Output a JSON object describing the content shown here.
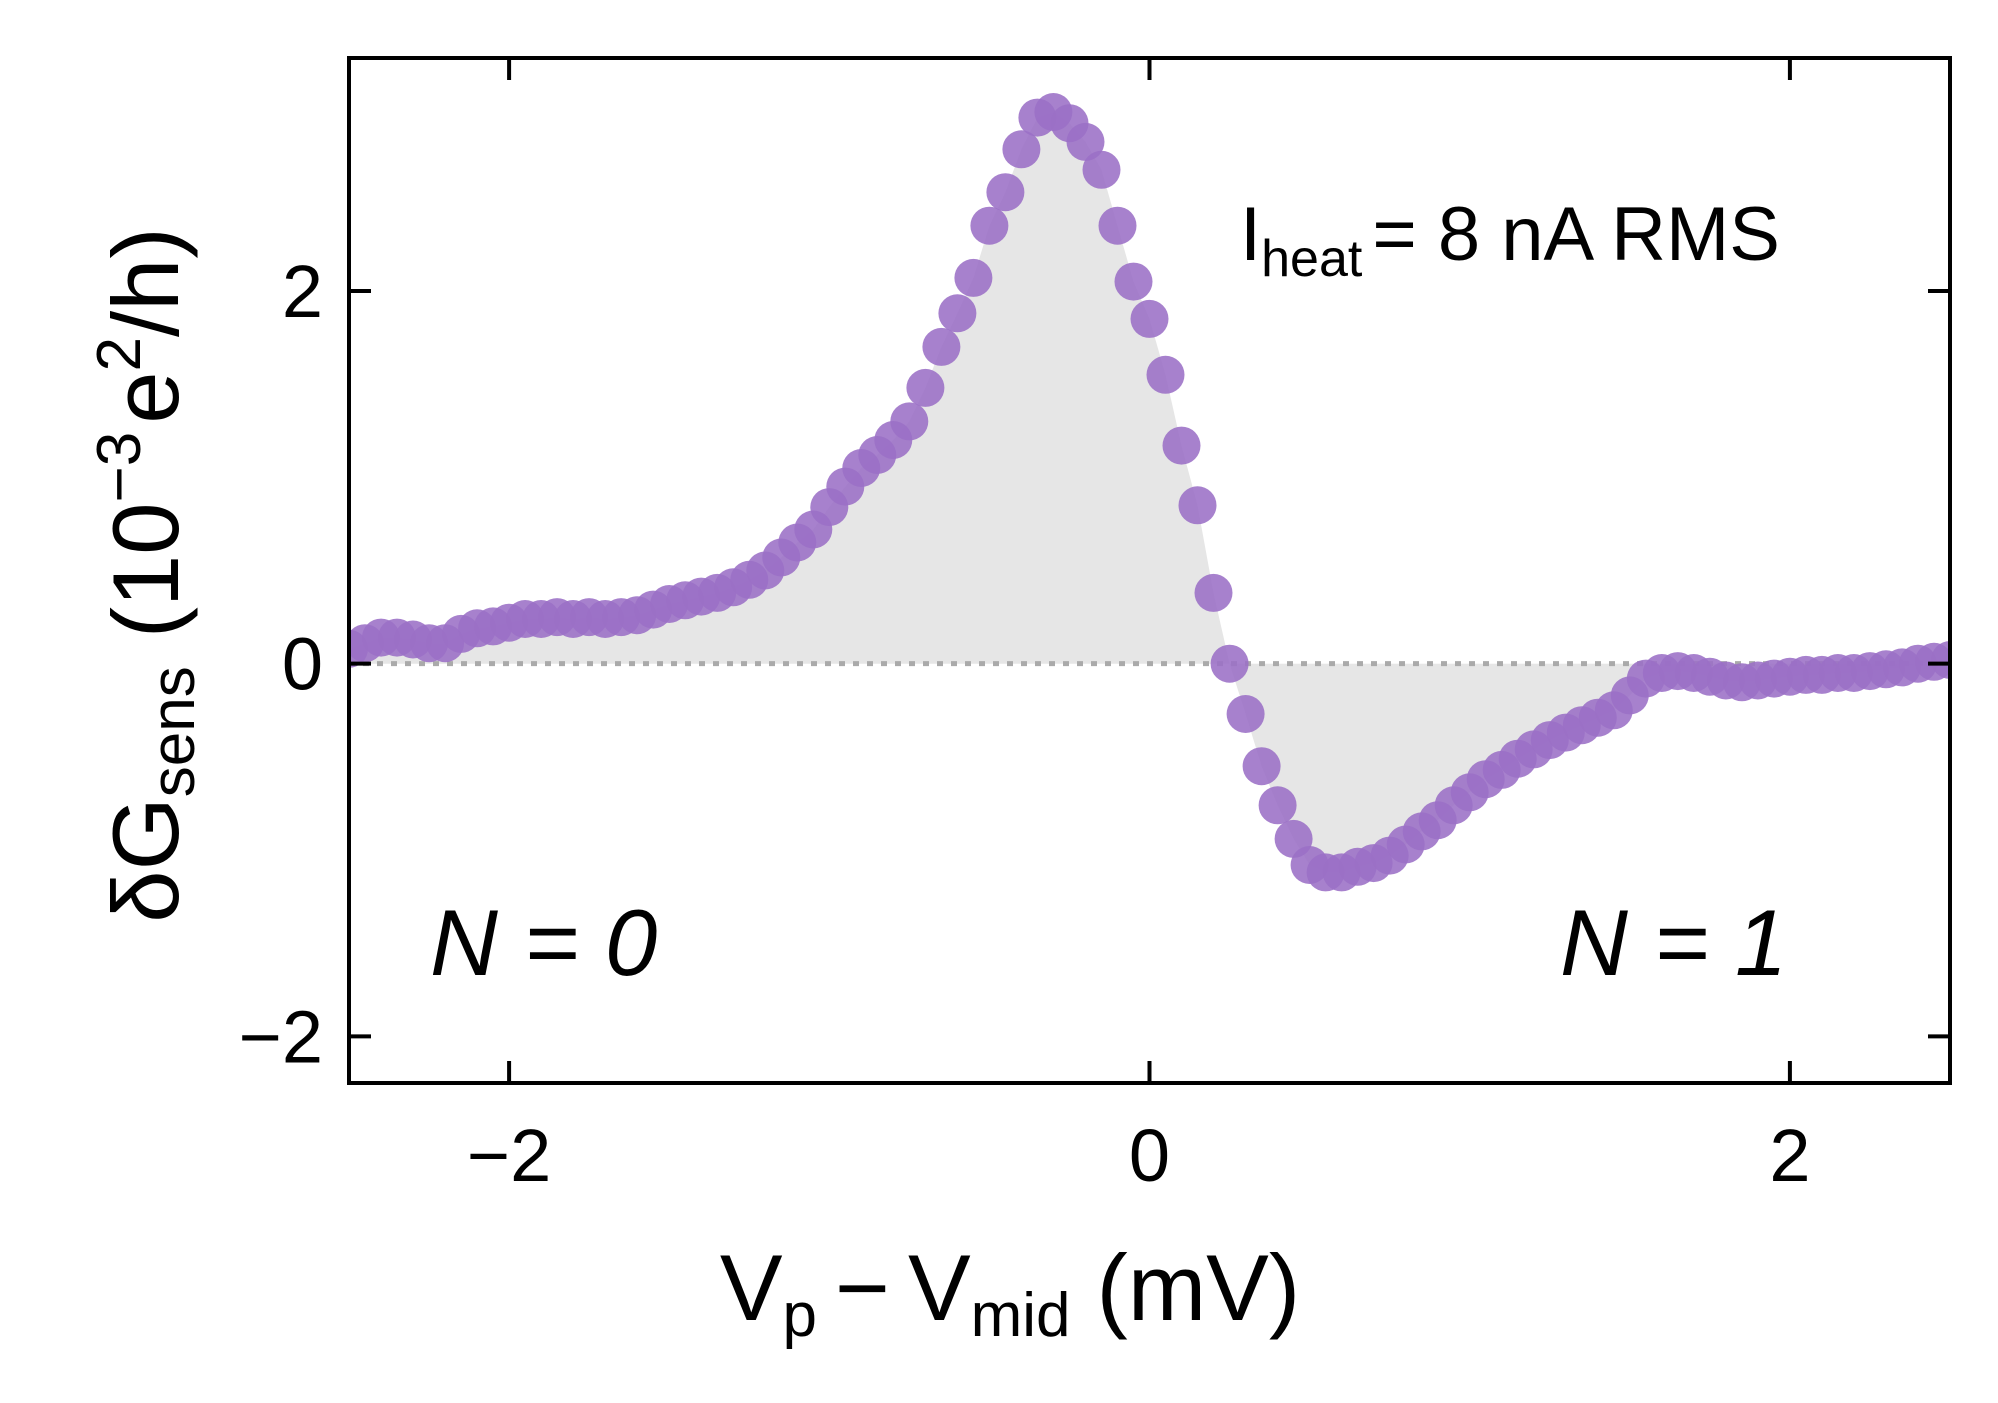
{
  "chart_data": {
    "type": "scatter",
    "xlabel": "Vp − Vmid (mV)",
    "xlabel_parts": {
      "v1": "V",
      "sub1": "p",
      "op": "−",
      "v2": "V",
      "sub2": "mid",
      "unit": "(mV)"
    },
    "ylabel": "δGsens (10−3 e2/h)",
    "ylabel_parts": {
      "sym": "δG",
      "sub": "sens",
      "open": "(10",
      "exp": "−3",
      "e": "e",
      "exp2": "2",
      "tail": "/h)"
    },
    "xlim": [
      -2.5,
      2.5
    ],
    "ylim": [
      -2.25,
      3.25
    ],
    "xticks": [
      -2,
      0,
      2
    ],
    "xtick_labels": [
      "−2",
      "0",
      "2"
    ],
    "yticks": [
      -2,
      0,
      2
    ],
    "ytick_labels": [
      "−2",
      "0",
      "2"
    ],
    "zero_line": "dotted",
    "shaded_area": "between curve and zero",
    "colors": {
      "points": "#9b6fc6",
      "fill": "#e6e6e6",
      "zero_line": "#aaaaaa",
      "axes": "#000000"
    },
    "annotations": {
      "current": {
        "main": "I",
        "sub": "heat",
        "rest": "= 8 nA RMS"
      },
      "left_region": "N = 0",
      "right_region": "N = 1"
    },
    "series": [
      {
        "points": [
          [
            -2.5,
            0.08
          ],
          [
            -2.45,
            0.11
          ],
          [
            -2.4,
            0.14
          ],
          [
            -2.35,
            0.14
          ],
          [
            -2.3,
            0.13
          ],
          [
            -2.25,
            0.11
          ],
          [
            -2.2,
            0.11
          ],
          [
            -2.15,
            0.16
          ],
          [
            -2.1,
            0.19
          ],
          [
            -2.05,
            0.2
          ],
          [
            -2.0,
            0.22
          ],
          [
            -1.95,
            0.24
          ],
          [
            -1.9,
            0.24
          ],
          [
            -1.85,
            0.25
          ],
          [
            -1.8,
            0.24
          ],
          [
            -1.75,
            0.25
          ],
          [
            -1.7,
            0.24
          ],
          [
            -1.65,
            0.25
          ],
          [
            -1.6,
            0.26
          ],
          [
            -1.55,
            0.29
          ],
          [
            -1.5,
            0.32
          ],
          [
            -1.45,
            0.34
          ],
          [
            -1.4,
            0.36
          ],
          [
            -1.35,
            0.38
          ],
          [
            -1.3,
            0.41
          ],
          [
            -1.25,
            0.45
          ],
          [
            -1.2,
            0.5
          ],
          [
            -1.15,
            0.57
          ],
          [
            -1.1,
            0.65
          ],
          [
            -1.05,
            0.72
          ],
          [
            -1.0,
            0.84
          ],
          [
            -0.95,
            0.95
          ],
          [
            -0.9,
            1.05
          ],
          [
            -0.85,
            1.12
          ],
          [
            -0.8,
            1.2
          ],
          [
            -0.75,
            1.3
          ],
          [
            -0.7,
            1.48
          ],
          [
            -0.65,
            1.7
          ],
          [
            -0.6,
            1.88
          ],
          [
            -0.55,
            2.07
          ],
          [
            -0.5,
            2.35
          ],
          [
            -0.45,
            2.53
          ],
          [
            -0.4,
            2.76
          ],
          [
            -0.35,
            2.93
          ],
          [
            -0.3,
            2.96
          ],
          [
            -0.25,
            2.9
          ],
          [
            -0.2,
            2.8
          ],
          [
            -0.15,
            2.65
          ],
          [
            -0.1,
            2.35
          ],
          [
            -0.05,
            2.05
          ],
          [
            0.0,
            1.85
          ],
          [
            0.05,
            1.55
          ],
          [
            0.1,
            1.17
          ],
          [
            0.15,
            0.85
          ],
          [
            0.2,
            0.38
          ],
          [
            0.25,
            0.0
          ],
          [
            0.3,
            -0.27
          ],
          [
            0.35,
            -0.55
          ],
          [
            0.4,
            -0.76
          ],
          [
            0.45,
            -0.94
          ],
          [
            0.5,
            -1.08
          ],
          [
            0.55,
            -1.12
          ],
          [
            0.6,
            -1.12
          ],
          [
            0.65,
            -1.09
          ],
          [
            0.7,
            -1.07
          ],
          [
            0.75,
            -1.03
          ],
          [
            0.8,
            -0.97
          ],
          [
            0.85,
            -0.9
          ],
          [
            0.9,
            -0.84
          ],
          [
            0.95,
            -0.76
          ],
          [
            1.0,
            -0.69
          ],
          [
            1.05,
            -0.62
          ],
          [
            1.1,
            -0.57
          ],
          [
            1.15,
            -0.51
          ],
          [
            1.2,
            -0.46
          ],
          [
            1.25,
            -0.41
          ],
          [
            1.3,
            -0.37
          ],
          [
            1.35,
            -0.33
          ],
          [
            1.4,
            -0.29
          ],
          [
            1.45,
            -0.25
          ],
          [
            1.5,
            -0.17
          ],
          [
            1.55,
            -0.08
          ],
          [
            1.6,
            -0.05
          ],
          [
            1.65,
            -0.04
          ],
          [
            1.7,
            -0.05
          ],
          [
            1.75,
            -0.07
          ],
          [
            1.8,
            -0.09
          ],
          [
            1.85,
            -0.1
          ],
          [
            1.9,
            -0.09
          ],
          [
            1.95,
            -0.08
          ],
          [
            2.0,
            -0.07
          ],
          [
            2.05,
            -0.06
          ],
          [
            2.1,
            -0.06
          ],
          [
            2.15,
            -0.05
          ],
          [
            2.2,
            -0.05
          ],
          [
            2.25,
            -0.04
          ],
          [
            2.3,
            -0.03
          ],
          [
            2.35,
            -0.02
          ],
          [
            2.4,
            0.0
          ],
          [
            2.45,
            0.01
          ],
          [
            2.5,
            0.02
          ]
        ]
      }
    ]
  }
}
